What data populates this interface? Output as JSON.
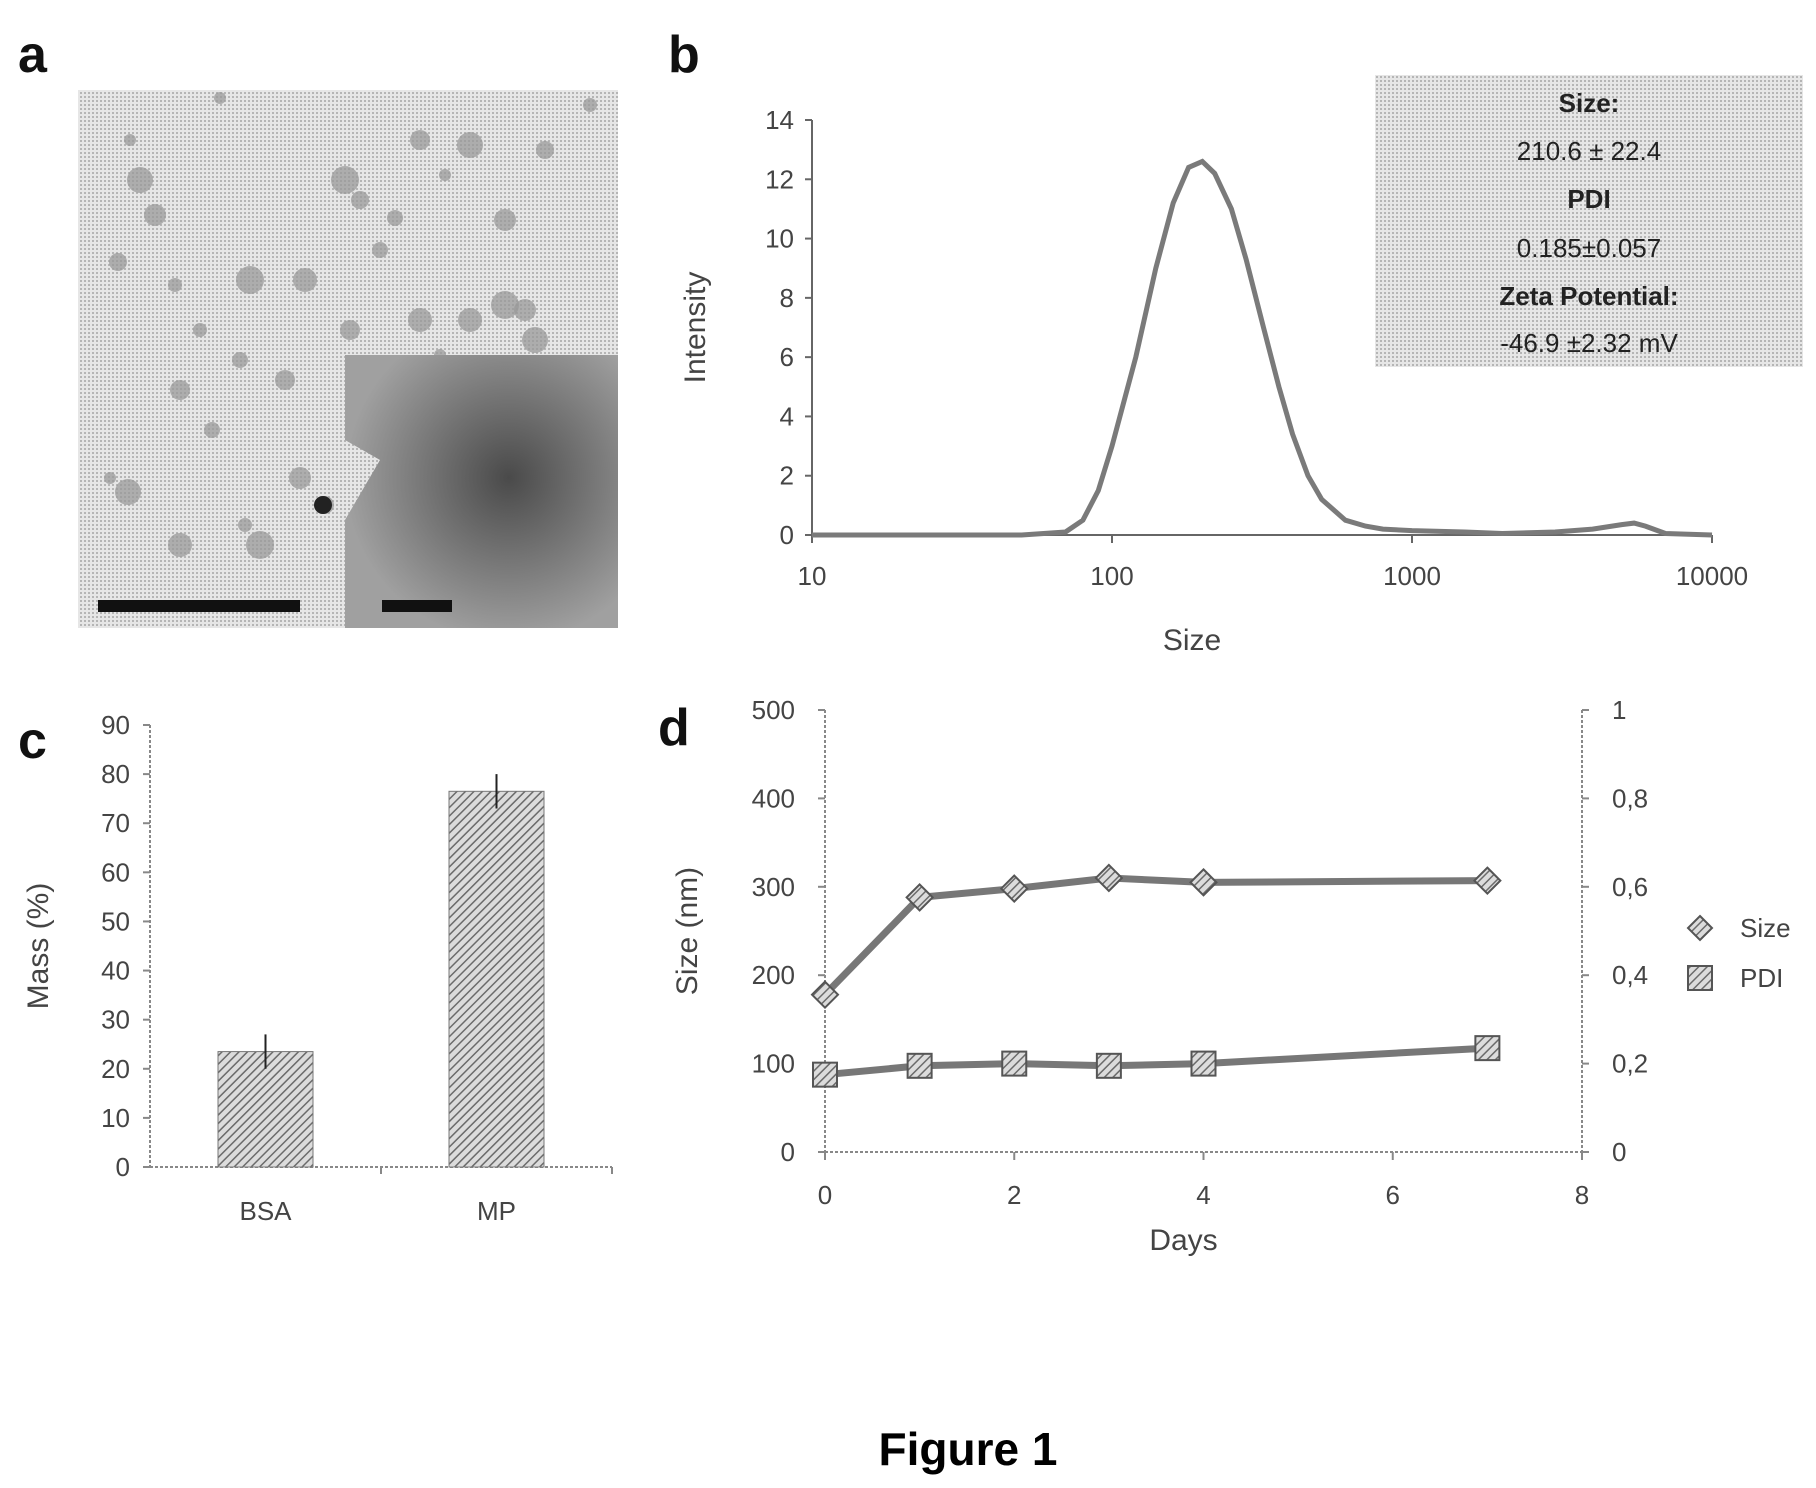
{
  "figure": {
    "caption": "Figure 1",
    "panels": {
      "a": "a",
      "b": "b",
      "c": "c",
      "d": "d"
    }
  },
  "micrograph": {
    "bg_color": "#d9d9d9",
    "inset_color": "#8c8c8c"
  },
  "chart_data": [
    {
      "panel": "b",
      "type": "line",
      "xlabel": "Size",
      "ylabel": "Intensity",
      "x_scale": "log",
      "xlim": [
        10,
        10000
      ],
      "ylim": [
        0,
        14
      ],
      "x_ticks": [
        "10",
        "100",
        "1000",
        "10000"
      ],
      "y_ticks": [
        "0",
        "2",
        "4",
        "6",
        "8",
        "10",
        "12",
        "14"
      ],
      "series": [
        {
          "x": [
            10,
            50,
            70,
            80,
            90,
            100,
            120,
            140,
            160,
            180,
            200,
            220,
            250,
            280,
            320,
            360,
            400,
            450,
            500,
            600,
            700,
            800,
            1000,
            1500,
            2000,
            3000,
            4000,
            5000,
            5500,
            6000,
            7000,
            10000
          ],
          "y": [
            0,
            0,
            0.1,
            0.5,
            1.5,
            3.0,
            6.0,
            9.0,
            11.2,
            12.4,
            12.6,
            12.2,
            11.0,
            9.3,
            7.0,
            5.0,
            3.4,
            2.0,
            1.2,
            0.5,
            0.3,
            0.2,
            0.15,
            0.1,
            0.05,
            0.1,
            0.2,
            0.35,
            0.4,
            0.3,
            0.05,
            0
          ]
        }
      ],
      "info_box": {
        "size_label": "Size:",
        "size_value": "210.6 ± 22.4",
        "pdi_label": "PDI",
        "pdi_value": "0.185±0.057",
        "zeta_label": "Zeta Potential:",
        "zeta_value": "-46.9 ±2.32 mV"
      }
    },
    {
      "panel": "c",
      "type": "bar",
      "categories": [
        "BSA",
        "MP"
      ],
      "values": [
        23.5,
        76.5
      ],
      "errors": [
        3.5,
        3.5
      ],
      "ylabel": "Mass (%)",
      "ylim": [
        0,
        90
      ],
      "y_ticks": [
        "0",
        "10",
        "20",
        "30",
        "40",
        "50",
        "60",
        "70",
        "80",
        "90"
      ]
    },
    {
      "panel": "d",
      "type": "line",
      "xlabel": "Days",
      "ylabel": "Size (nm)",
      "xlim": [
        0,
        8
      ],
      "ylim": [
        0,
        500
      ],
      "y2lim": [
        0,
        1
      ],
      "x_ticks": [
        "0",
        "2",
        "4",
        "6",
        "8"
      ],
      "y_ticks": [
        "0",
        "100",
        "200",
        "300",
        "400",
        "500"
      ],
      "y2_ticks": [
        "0",
        "0,2",
        "0,4",
        "0,6",
        "0,8",
        "1"
      ],
      "legend_position": "right",
      "series": [
        {
          "name": "Size",
          "axis": "left",
          "marker": "diamond",
          "x": [
            0,
            1,
            2,
            3,
            4,
            7
          ],
          "y": [
            178,
            288,
            298,
            310,
            305,
            307
          ]
        },
        {
          "name": "PDI",
          "axis": "right",
          "marker": "square",
          "x": [
            0,
            1,
            2,
            3,
            4,
            7
          ],
          "y": [
            0.175,
            0.195,
            0.2,
            0.195,
            0.2,
            0.235
          ]
        }
      ]
    }
  ]
}
